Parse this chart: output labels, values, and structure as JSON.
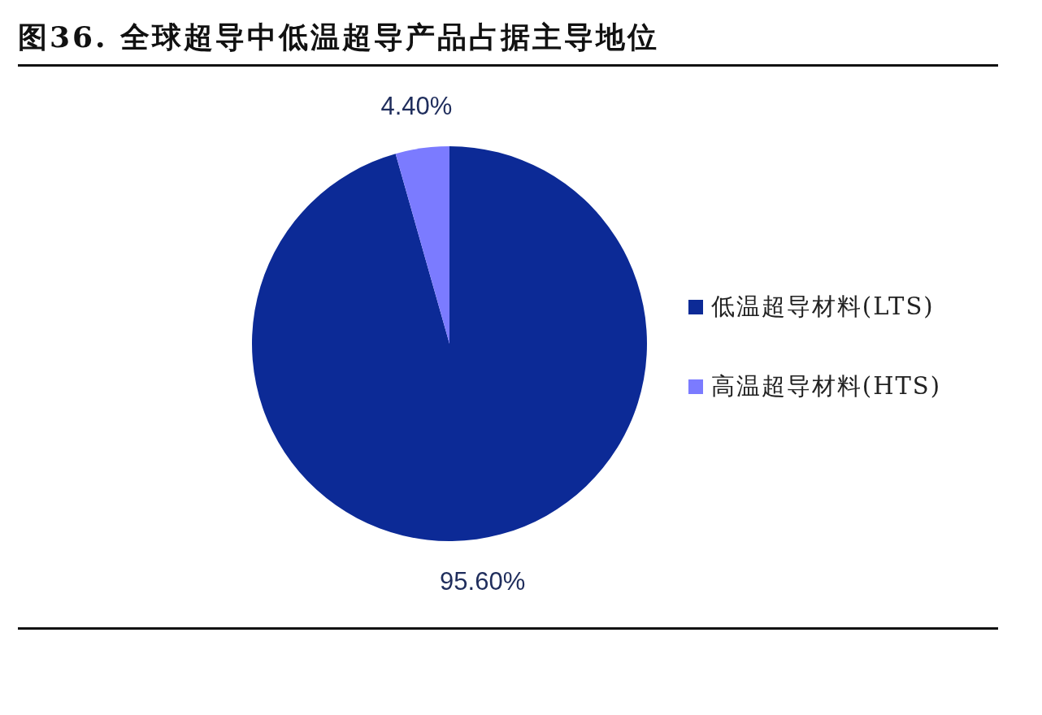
{
  "chart_data": {
    "type": "pie",
    "title": "图36. 全球超导中低温超导产品占据主导地位",
    "categories": [
      "低温超导材料(LTS)",
      "高温超导材料(HTS)"
    ],
    "values": [
      95.6,
      4.4
    ],
    "colors": [
      "#0c2a96",
      "#7b7bff"
    ],
    "value_labels": [
      "95.60%",
      "4.40%"
    ],
    "legend": "right"
  }
}
